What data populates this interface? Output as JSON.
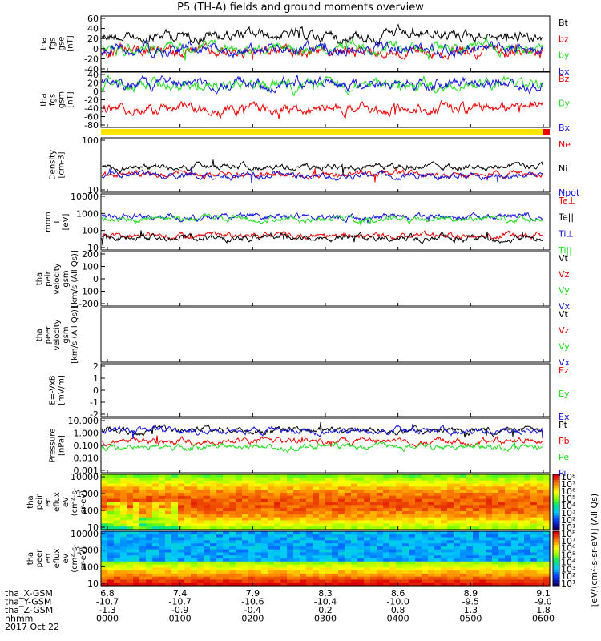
{
  "title": "P5 (TH-A) fields and ground moments overview",
  "colors": {
    "black": "#000000",
    "red": "#ee0000",
    "green": "#22dd22",
    "blue": "#1010dd",
    "yellow": "#ffe600"
  },
  "chart_data": [
    {
      "type": "line",
      "ylabel": [
        "tha",
        "fgs",
        "gse",
        "[nT]"
      ],
      "ylim": [
        -40,
        60
      ],
      "yticks": [
        "60",
        "40",
        "20",
        "0",
        "-20",
        "-40"
      ],
      "series": [
        {
          "name": "Bt",
          "color": "black",
          "level": 25
        },
        {
          "name": "bz",
          "color": "red",
          "level": -5
        },
        {
          "name": "by",
          "color": "green",
          "level": 2
        },
        {
          "name": "bx",
          "color": "blue",
          "level": 0
        }
      ]
    },
    {
      "type": "line",
      "ylabel": [
        "tha",
        "fgs",
        "gsm",
        "[nT]"
      ],
      "ylim": [
        -80,
        40
      ],
      "yticks": [
        "40",
        "20",
        "0",
        "-20",
        "-40",
        "-60",
        "-80"
      ],
      "series": [
        {
          "name": "Bz",
          "color": "red",
          "level": -40
        },
        {
          "name": "By",
          "color": "green",
          "level": 12
        },
        {
          "name": "Bx",
          "color": "blue",
          "level": 15
        }
      ]
    },
    {
      "type": "line",
      "ylabel": [
        "Density",
        "[cm-3]"
      ],
      "yscale": "log",
      "yticks": [
        "100",
        "10"
      ],
      "series": [
        {
          "name": "Ne",
          "color": "red",
          "level": 10
        },
        {
          "name": "Ni",
          "color": "black",
          "level": 20
        },
        {
          "name": "Npot",
          "color": "blue",
          "level": 9
        }
      ]
    },
    {
      "type": "line",
      "ylabel": [
        "mom",
        "T",
        "[eV]"
      ],
      "yscale": "log",
      "yticks": [
        "10000",
        "1000",
        "100",
        "10"
      ],
      "series": [
        {
          "name": "Te⊥",
          "color": "red",
          "level": 60
        },
        {
          "name": "Te||",
          "color": "black",
          "level": 45
        },
        {
          "name": "Ti⊥",
          "color": "blue",
          "level": 600
        },
        {
          "name": "Ti||",
          "color": "green",
          "level": 450
        }
      ]
    },
    {
      "type": "line",
      "ylabel": [
        "tha",
        "peir",
        "velocity",
        "gsm",
        "[km/s (All Qs)]"
      ],
      "ylim": [
        -200,
        200
      ],
      "yticks": [
        "200",
        "100",
        "0",
        "-100",
        "-200"
      ],
      "series": [
        {
          "name": "Vt",
          "color": "black"
        },
        {
          "name": "Vz",
          "color": "red"
        },
        {
          "name": "Vy",
          "color": "green"
        },
        {
          "name": "Vx",
          "color": "blue"
        }
      ]
    },
    {
      "type": "line",
      "ylabel": [
        "tha",
        "peer",
        "velocity",
        "gsm",
        "[km/s (All Qs)]"
      ],
      "yticks": [],
      "series": [
        {
          "name": "Vt",
          "color": "black"
        },
        {
          "name": "Vz",
          "color": "red"
        },
        {
          "name": "Vy",
          "color": "green"
        },
        {
          "name": "Vx",
          "color": "blue"
        }
      ]
    },
    {
      "type": "line",
      "ylabel": [
        "E=-VxB",
        "[mV/m]"
      ],
      "ylim": [
        -2,
        2
      ],
      "yticks": [
        "2",
        "1",
        "0",
        "-1",
        "-2"
      ],
      "series": [
        {
          "name": "Ez",
          "color": "red"
        },
        {
          "name": "Ey",
          "color": "green"
        },
        {
          "name": "Ex",
          "color": "blue"
        }
      ]
    },
    {
      "type": "line",
      "ylabel": [
        "Pressure",
        "[nPa]"
      ],
      "yscale": "log",
      "yticks": [
        "10.000",
        "1.000",
        "0.100",
        "0.010",
        "0.001"
      ],
      "series": [
        {
          "name": "Pt",
          "color": "black",
          "level": 1.2
        },
        {
          "name": "Pb",
          "color": "red",
          "level": 0.2
        },
        {
          "name": "Pe",
          "color": "green",
          "level": 0.08
        },
        {
          "name": "Pi",
          "color": "blue",
          "level": 1.1
        }
      ]
    },
    {
      "type": "heatmap",
      "ylabel": [
        "tha",
        "peir",
        "en",
        "eflux",
        "eV",
        "(cm²-s-",
        "sr-eV)"
      ],
      "yticks": [
        "10000",
        "1000",
        "100",
        "10"
      ],
      "colorbar": {
        "label": "[eV/(cm²-s-sr-eV)] (All Qs)",
        "ticks": [
          "10⁸",
          "10⁷",
          "10⁶",
          "10⁵",
          "10⁴",
          "10³",
          "10²",
          "10¹"
        ]
      }
    },
    {
      "type": "heatmap",
      "ylabel": [
        "tha",
        "peer",
        "en",
        "eflux",
        "eV",
        "(cm²-s-",
        "sr-eV)"
      ],
      "yticks": [
        "10000",
        "1000",
        "100",
        "10"
      ],
      "colorbar": {
        "label": "",
        "ticks": [
          "10⁸",
          "10⁷",
          "10⁶",
          "10⁵",
          "10⁴",
          "10³",
          "10²",
          "10¹"
        ]
      }
    }
  ],
  "footer": {
    "rows": [
      {
        "label": "tha_X-GSM",
        "values": [
          "6.8",
          "7.4",
          "7.9",
          "8.3",
          "8.6",
          "8.9",
          "9.1"
        ]
      },
      {
        "label": "tha_Y-GSM",
        "values": [
          "-10.7",
          "-10.7",
          "-10.6",
          "-10.4",
          "-10.0",
          "-9.5",
          "-9.0"
        ]
      },
      {
        "label": "tha_Z-GSM",
        "values": [
          "-1.3",
          "-0.9",
          "-0.4",
          "0.2",
          "0.8",
          "1.3",
          "1.8"
        ]
      },
      {
        "label": "hhmm",
        "values": [
          "0000",
          "0100",
          "0200",
          "0300",
          "0400",
          "0500",
          "0600"
        ]
      }
    ],
    "date": "2017 Oct 22"
  }
}
